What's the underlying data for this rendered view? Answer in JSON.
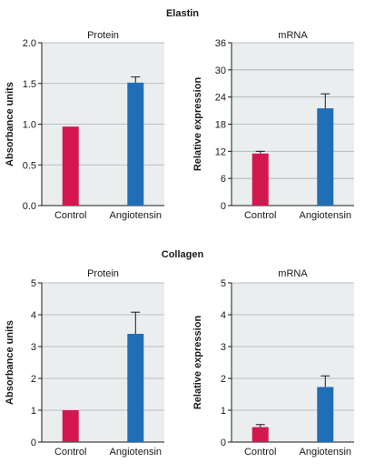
{
  "figure": {
    "section_titles": [
      "Elastin",
      "Collagen"
    ]
  },
  "colors": {
    "control": "#d4174f",
    "angiotensin": "#1f6fb6",
    "plot_background": "#ebeeef",
    "gridline": "#a9afb3"
  },
  "chart_data": [
    {
      "section": "Elastin",
      "type": "bar",
      "title": "Protein",
      "ylabel": "Absorbance units",
      "categories": [
        "Control",
        "Angiotensin"
      ],
      "values": [
        0.97,
        1.51
      ],
      "errors": [
        null,
        0.07
      ],
      "ylim": [
        0,
        2.0
      ],
      "ticks": [
        0,
        0.5,
        1.0,
        1.5,
        2.0
      ],
      "tick_labels": [
        "0.0",
        "0.5",
        "1.0",
        "1.5",
        "2.0"
      ],
      "grid": true
    },
    {
      "section": "Elastin",
      "type": "bar",
      "title": "mRNA",
      "ylabel": "Relative expression",
      "categories": [
        "Control",
        "Angiotensin"
      ],
      "values": [
        11.5,
        21.5
      ],
      "errors": [
        0.5,
        3.2
      ],
      "ylim": [
        0,
        36
      ],
      "ticks": [
        0,
        6,
        12,
        18,
        24,
        30,
        36
      ],
      "tick_labels": [
        "0",
        "6",
        "12",
        "18",
        "24",
        "30",
        "36"
      ],
      "grid": true
    },
    {
      "section": "Collagen",
      "type": "bar",
      "title": "Protein",
      "ylabel": "Absorbance units",
      "categories": [
        "Control",
        "Angiotensin"
      ],
      "values": [
        1.0,
        3.4
      ],
      "errors": [
        null,
        0.68
      ],
      "ylim": [
        0,
        5
      ],
      "ticks": [
        0,
        1,
        2,
        3,
        4,
        5
      ],
      "tick_labels": [
        "0",
        "1",
        "2",
        "3",
        "4",
        "5"
      ],
      "grid": true
    },
    {
      "section": "Collagen",
      "type": "bar",
      "title": "mRNA",
      "ylabel": "Relative expression",
      "categories": [
        "Control",
        "Angiotensin"
      ],
      "values": [
        0.47,
        1.73
      ],
      "errors": [
        0.08,
        0.35
      ],
      "ylim": [
        0,
        5
      ],
      "ticks": [
        0,
        1,
        2,
        3,
        4,
        5
      ],
      "tick_labels": [
        "0",
        "1",
        "2",
        "3",
        "4",
        "5"
      ],
      "grid": true
    }
  ]
}
